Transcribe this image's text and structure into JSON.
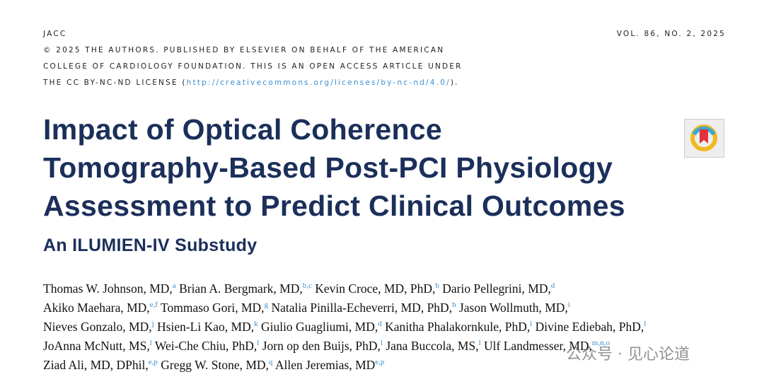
{
  "header": {
    "journal": "JACC",
    "volume": "VOL. 86, NO. 2, 2025",
    "license_lines": [
      "© 2025 THE AUTHORS. PUBLISHED BY ELSEVIER ON BEHALF OF THE AMERICAN",
      "COLLEGE OF CARDIOLOGY FOUNDATION. THIS IS AN OPEN ACCESS ARTICLE UNDER",
      "THE CC BY-NC-ND LICENSE ("
    ],
    "license_url": "http://creativecommons.org/licenses/by-nc-nd/4.0/",
    "license_end": ")."
  },
  "title": [
    "Impact of Optical Coherence",
    "Tomography-Based Post-PCI Physiology",
    "Assessment to Predict Clinical Outcomes"
  ],
  "subtitle": "An ILUMIEN-IV Substudy",
  "author_lines": [
    [
      {
        "name": "Thomas W. Johnson, MD,",
        "affil": "a"
      },
      {
        "name": "Brian A. Bergmark, MD,",
        "affil": "b,c"
      },
      {
        "name": "Kevin Croce, MD, PhD,",
        "affil": "b"
      },
      {
        "name": "Dario Pellegrini, MD,",
        "affil": "d"
      }
    ],
    [
      {
        "name": "Akiko Maehara, MD,",
        "affil": "e,f"
      },
      {
        "name": "Tommaso Gori, MD,",
        "affil": "g"
      },
      {
        "name": "Natalia Pinilla-Echeverri, MD, PhD,",
        "affil": "h"
      },
      {
        "name": "Jason Wollmuth, MD,",
        "affil": "i"
      }
    ],
    [
      {
        "name": "Nieves Gonzalo, MD,",
        "affil": "j"
      },
      {
        "name": "Hsien-Li Kao, MD,",
        "affil": "k"
      },
      {
        "name": "Giulio Guagliumi, MD,",
        "affil": "d"
      },
      {
        "name": "Kanitha Phalakornkule, PhD,",
        "affil": "l"
      },
      {
        "name": "Divine Ediebah, PhD,",
        "affil": "l"
      }
    ],
    [
      {
        "name": "JoAnna McNutt, MS,",
        "affil": "l"
      },
      {
        "name": "Wei-Che Chiu, PhD,",
        "affil": "l"
      },
      {
        "name": "Jorn op den Buijs, PhD,",
        "affil": "l"
      },
      {
        "name": "Jana Buccola, MS,",
        "affil": "l"
      },
      {
        "name": "Ulf Landmesser, MD,",
        "affil": "m,n,o"
      }
    ],
    [
      {
        "name": "Ziad Ali, MD, DPhil,",
        "affil": "e,p"
      },
      {
        "name": "Gregg W. Stone, MD,",
        "affil": "q"
      },
      {
        "name": "Allen Jeremias, MD",
        "affil": "e,p"
      }
    ]
  ],
  "watermark": "公众号 · 见心论道"
}
